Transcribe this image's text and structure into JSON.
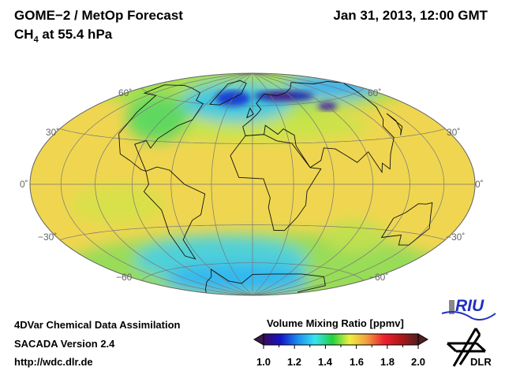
{
  "header": {
    "title": "GOME−2 / MetOp Forecast",
    "species": "CH",
    "species_sub": "4",
    "level": " at 55.4 hPa",
    "datetime": "Jan 31, 2013, 12:00 GMT"
  },
  "map": {
    "projection": "Hammer",
    "lat_labels_left": [
      "60˚",
      "30˚",
      "0˚",
      "−30˚",
      "−60"
    ],
    "lat_labels_right": [
      "60˚",
      "30˚",
      "0˚",
      "−30˚",
      "−60˚"
    ]
  },
  "footer": {
    "line1": "4DVar Chemical Data Assimilation",
    "line2": "SACADA Version 2.4",
    "line3": "http://wdc.dlr.de"
  },
  "colorbar": {
    "title": "Volume Mixing Ratio [ppmv]",
    "ticks": [
      "1.0",
      "1.2",
      "1.4",
      "1.6",
      "1.8",
      "2.0"
    ],
    "min": 1.0,
    "max": 2.0,
    "colors": [
      "#3a0a5a",
      "#1414c8",
      "#1a8ef0",
      "#38e4f0",
      "#22d040",
      "#eef040",
      "#f0a040",
      "#f02030",
      "#b01818",
      "#502020"
    ]
  },
  "logos": {
    "riu": "RIU",
    "dlr": "DLR"
  }
}
